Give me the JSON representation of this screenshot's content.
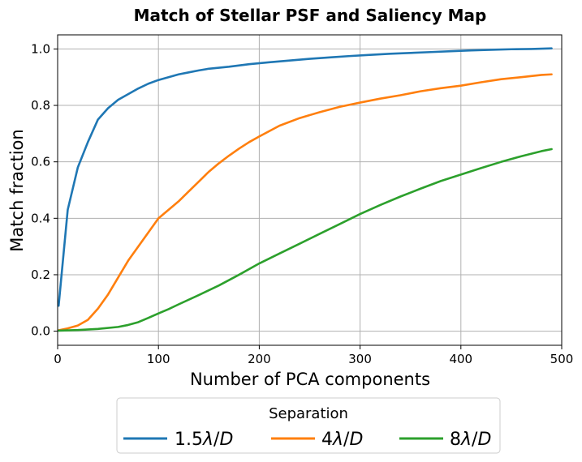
{
  "chart_data": {
    "type": "line",
    "title": "Match of Stellar PSF and Saliency Map",
    "xlabel": "Number of PCA components",
    "ylabel": "Match fraction",
    "xlim": [
      0,
      500
    ],
    "ylim": [
      -0.05,
      1.05
    ],
    "xticks": [
      "0",
      "100",
      "200",
      "300",
      "400",
      "500"
    ],
    "yticks": [
      "0.0",
      "0.2",
      "0.4",
      "0.6",
      "0.8",
      "1.0"
    ],
    "grid": true,
    "legend": {
      "title": "Separation",
      "placement": "below plot, centered",
      "entries": [
        {
          "prefix": "1.5",
          "lambda": "λ",
          "slash": "/",
          "d": "D"
        },
        {
          "prefix": "4",
          "lambda": "λ",
          "slash": "/",
          "d": "D"
        },
        {
          "prefix": "8",
          "lambda": "λ",
          "slash": "/",
          "d": "D"
        }
      ]
    },
    "series": [
      {
        "color": "#1f77b4",
        "points": [
          [
            1,
            0.09
          ],
          [
            10,
            0.43
          ],
          [
            20,
            0.58
          ],
          [
            30,
            0.67
          ],
          [
            40,
            0.75
          ],
          [
            50,
            0.79
          ],
          [
            60,
            0.82
          ],
          [
            70,
            0.84
          ],
          [
            80,
            0.86
          ],
          [
            90,
            0.877
          ],
          [
            100,
            0.89
          ],
          [
            110,
            0.9
          ],
          [
            120,
            0.91
          ],
          [
            130,
            0.917
          ],
          [
            140,
            0.924
          ],
          [
            150,
            0.93
          ],
          [
            170,
            0.937
          ],
          [
            190,
            0.946
          ],
          [
            210,
            0.953
          ],
          [
            230,
            0.959
          ],
          [
            250,
            0.965
          ],
          [
            270,
            0.97
          ],
          [
            290,
            0.975
          ],
          [
            310,
            0.979
          ],
          [
            330,
            0.983
          ],
          [
            350,
            0.986
          ],
          [
            370,
            0.989
          ],
          [
            390,
            0.992
          ],
          [
            410,
            0.995
          ],
          [
            430,
            0.997
          ],
          [
            450,
            0.999
          ],
          [
            470,
            1.0
          ],
          [
            490,
            1.002
          ]
        ]
      },
      {
        "color": "#ff7f0e",
        "points": [
          [
            1,
            0.003
          ],
          [
            10,
            0.01
          ],
          [
            20,
            0.02
          ],
          [
            30,
            0.04
          ],
          [
            40,
            0.08
          ],
          [
            50,
            0.13
          ],
          [
            60,
            0.19
          ],
          [
            70,
            0.25
          ],
          [
            80,
            0.3
          ],
          [
            90,
            0.35
          ],
          [
            100,
            0.4
          ],
          [
            110,
            0.43
          ],
          [
            120,
            0.46
          ],
          [
            130,
            0.495
          ],
          [
            140,
            0.53
          ],
          [
            150,
            0.565
          ],
          [
            160,
            0.595
          ],
          [
            170,
            0.622
          ],
          [
            180,
            0.647
          ],
          [
            190,
            0.67
          ],
          [
            200,
            0.69
          ],
          [
            220,
            0.728
          ],
          [
            240,
            0.755
          ],
          [
            260,
            0.776
          ],
          [
            280,
            0.795
          ],
          [
            300,
            0.81
          ],
          [
            320,
            0.824
          ],
          [
            340,
            0.836
          ],
          [
            360,
            0.85
          ],
          [
            380,
            0.861
          ],
          [
            400,
            0.87
          ],
          [
            420,
            0.882
          ],
          [
            440,
            0.893
          ],
          [
            460,
            0.9
          ],
          [
            480,
            0.908
          ],
          [
            490,
            0.91
          ]
        ]
      },
      {
        "color": "#2ca02c",
        "points": [
          [
            1,
            0.002
          ],
          [
            20,
            0.004
          ],
          [
            40,
            0.008
          ],
          [
            60,
            0.015
          ],
          [
            70,
            0.022
          ],
          [
            80,
            0.032
          ],
          [
            90,
            0.047
          ],
          [
            100,
            0.063
          ],
          [
            110,
            0.078
          ],
          [
            120,
            0.095
          ],
          [
            140,
            0.128
          ],
          [
            160,
            0.162
          ],
          [
            180,
            0.2
          ],
          [
            200,
            0.24
          ],
          [
            220,
            0.275
          ],
          [
            240,
            0.31
          ],
          [
            260,
            0.345
          ],
          [
            280,
            0.38
          ],
          [
            300,
            0.415
          ],
          [
            320,
            0.447
          ],
          [
            340,
            0.477
          ],
          [
            360,
            0.505
          ],
          [
            380,
            0.532
          ],
          [
            400,
            0.555
          ],
          [
            420,
            0.578
          ],
          [
            440,
            0.6
          ],
          [
            460,
            0.62
          ],
          [
            480,
            0.638
          ],
          [
            490,
            0.645
          ]
        ]
      }
    ]
  }
}
